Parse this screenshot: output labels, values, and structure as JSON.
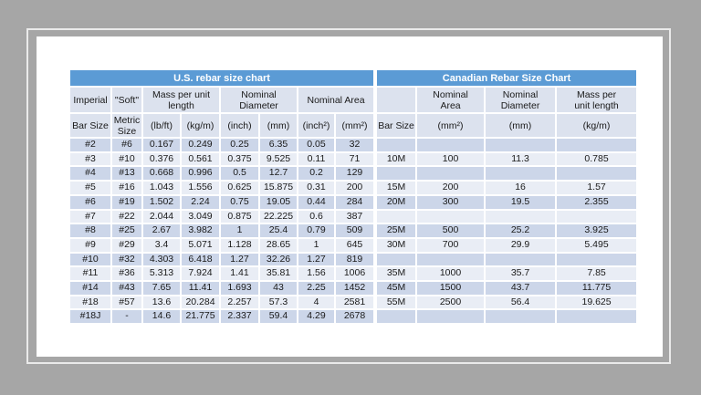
{
  "window": {
    "background_color": "#a6a6a6",
    "frame_border_color": "#eaeaea",
    "slide_color": "#ffffff"
  },
  "table": {
    "style": {
      "title_bg": "#5b9bd5",
      "title_text": "#ffffff",
      "subheader_bg": "#dce2ee",
      "band_dark": "#ccd6e9",
      "band_light": "#e9edf5",
      "grid_color": "#ffffff"
    },
    "us": {
      "title": "U.S. rebar size chart",
      "group_headers": [
        "Imperial",
        "\"Soft\"",
        "Mass per unit\nlength",
        "Nominal Diameter",
        "Nominal Area"
      ],
      "unit_headers": [
        "Bar Size",
        "Metric\nSize",
        "(lb/ft)",
        "(kg/m)",
        "(inch)",
        "(mm)",
        "(inch²)",
        "(mm²)"
      ]
    },
    "ca": {
      "title": "Canadian Rebar Size Chart",
      "group_headers": [
        "",
        "Nominal\nArea",
        "Nominal\nDiameter",
        "Mass per\nunit length"
      ],
      "unit_headers": [
        "Bar Size",
        "(mm²)",
        "(mm)",
        "(kg/m)"
      ]
    },
    "rows": [
      {
        "cells": [
          "#2",
          "#6",
          "0.167",
          "0.249",
          "0.25",
          "6.35",
          "0.05",
          "32",
          "",
          "",
          "",
          ""
        ]
      },
      {
        "cells": [
          "#3",
          "#10",
          "0.376",
          "0.561",
          "0.375",
          "9.525",
          "0.11",
          "71",
          "10M",
          "100",
          "11.3",
          "0.785"
        ]
      },
      {
        "cells": [
          "#4",
          "#13",
          "0.668",
          "0.996",
          "0.5",
          "12.7",
          "0.2",
          "129",
          "",
          "",
          "",
          ""
        ]
      },
      {
        "cells": [
          "#5",
          "#16",
          "1.043",
          "1.556",
          "0.625",
          "15.875",
          "0.31",
          "200",
          "15M",
          "200",
          "16",
          "1.57"
        ]
      },
      {
        "cells": [
          "#6",
          "#19",
          "1.502",
          "2.24",
          "0.75",
          "19.05",
          "0.44",
          "284",
          "20M",
          "300",
          "19.5",
          "2.355"
        ]
      },
      {
        "cells": [
          "#7",
          "#22",
          "2.044",
          "3.049",
          "0.875",
          "22.225",
          "0.6",
          "387",
          "",
          "",
          "",
          ""
        ]
      },
      {
        "cells": [
          "#8",
          "#25",
          "2.67",
          "3.982",
          "1",
          "25.4",
          "0.79",
          "509",
          "25M",
          "500",
          "25.2",
          "3.925"
        ]
      },
      {
        "cells": [
          "#9",
          "#29",
          "3.4",
          "5.071",
          "1.128",
          "28.65",
          "1",
          "645",
          "30M",
          "700",
          "29.9",
          "5.495"
        ]
      },
      {
        "cells": [
          "#10",
          "#32",
          "4.303",
          "6.418",
          "1.27",
          "32.26",
          "1.27",
          "819",
          "",
          "",
          "",
          ""
        ]
      },
      {
        "cells": [
          "#11",
          "#36",
          "5.313",
          "7.924",
          "1.41",
          "35.81",
          "1.56",
          "1006",
          "35M",
          "1000",
          "35.7",
          "7.85"
        ]
      },
      {
        "cells": [
          "#14",
          "#43",
          "7.65",
          "11.41",
          "1.693",
          "43",
          "2.25",
          "1452",
          "45M",
          "1500",
          "43.7",
          "11.775"
        ]
      },
      {
        "cells": [
          "#18",
          "#57",
          "13.6",
          "20.284",
          "2.257",
          "57.3",
          "4",
          "2581",
          "55M",
          "2500",
          "56.4",
          "19.625"
        ]
      },
      {
        "cells": [
          "#18J",
          "-",
          "14.6",
          "21.775",
          "2.337",
          "59.4",
          "4.29",
          "2678",
          "",
          "",
          "",
          ""
        ]
      }
    ]
  }
}
